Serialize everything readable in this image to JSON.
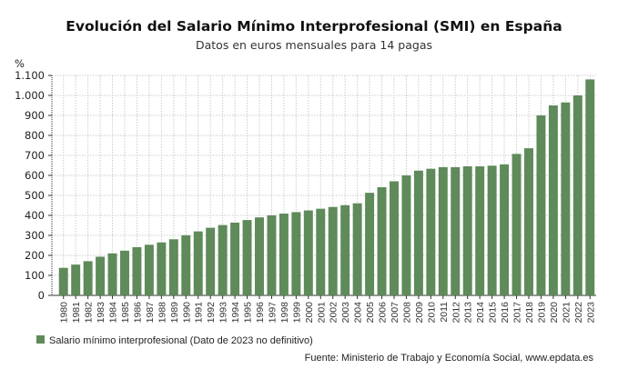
{
  "chart_data": {
    "type": "bar",
    "title": "Evolución del Salario Mínimo Interprofesional (SMI) en España",
    "subtitle": "Datos en euros mensuales para 14 pagas",
    "ylabel": "%",
    "xlabel": "",
    "ylim": [
      0,
      1100
    ],
    "yticks": [
      0,
      100,
      200,
      300,
      400,
      500,
      600,
      700,
      800,
      900,
      1000,
      1100
    ],
    "ytick_labels": [
      "0",
      "100",
      "200",
      "300",
      "400",
      "500",
      "600",
      "700",
      "800",
      "900",
      "1.000",
      "1.100"
    ],
    "grid": true,
    "legend_position": "bottom-left",
    "categories": [
      "1980",
      "1981",
      "1982",
      "1983",
      "1984",
      "1985",
      "1986",
      "1987",
      "1988",
      "1989",
      "1990",
      "1991",
      "1992",
      "1993",
      "1994",
      "1995",
      "1996",
      "1997",
      "1998",
      "1999",
      "2000",
      "2001",
      "2002",
      "2003",
      "2004",
      "2005",
      "2006",
      "2007",
      "2008",
      "2009",
      "2010",
      "2011",
      "2012",
      "2013",
      "2014",
      "2015",
      "2016",
      "2017",
      "2018",
      "2019",
      "2020",
      "2021",
      "2022",
      "2023"
    ],
    "series": [
      {
        "name": "Salario mínimo interprofesional (Dato de 2023 no definitivo)",
        "color": "#5f8a5a",
        "values": [
          137.6,
          154.0,
          170.9,
          193.3,
          209.9,
          223.4,
          241.3,
          253.1,
          264.9,
          280.6,
          300.6,
          320.0,
          338.3,
          351.8,
          364.0,
          376.8,
          390.2,
          400.5,
          408.9,
          416.3,
          424.8,
          433.5,
          442.2,
          451.2,
          460.5,
          513.0,
          540.9,
          570.6,
          600.0,
          624.0,
          633.3,
          641.4,
          641.4,
          645.3,
          645.3,
          648.6,
          655.2,
          707.6,
          735.9,
          900.0,
          950.0,
          965.0,
          1000.0,
          1080.0
        ]
      }
    ],
    "source": "Fuente: Ministerio de Trabajo y Economía Social, www.epdata.es"
  }
}
